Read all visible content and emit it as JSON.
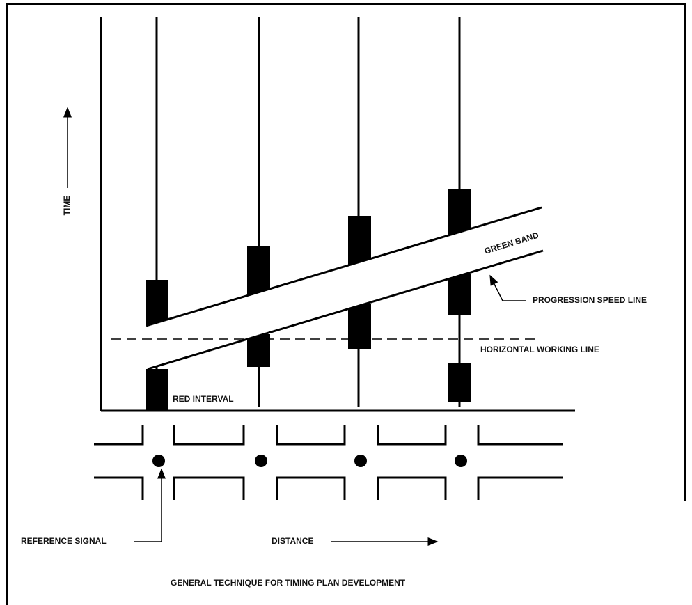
{
  "labels": {
    "time": "TIME",
    "green_band": "GREEN BAND",
    "progression_speed_line": "PROGRESSION SPEED LINE",
    "horizontal_working_line": "HORIZONTAL WORKING LINE",
    "red_interval": "RED INTERVAL",
    "reference_signal": "REFERENCE SIGNAL",
    "distance": "DISTANCE"
  },
  "caption": "GENERAL TECHNIQUE FOR TIMING PLAN DEVELOPMENT"
}
